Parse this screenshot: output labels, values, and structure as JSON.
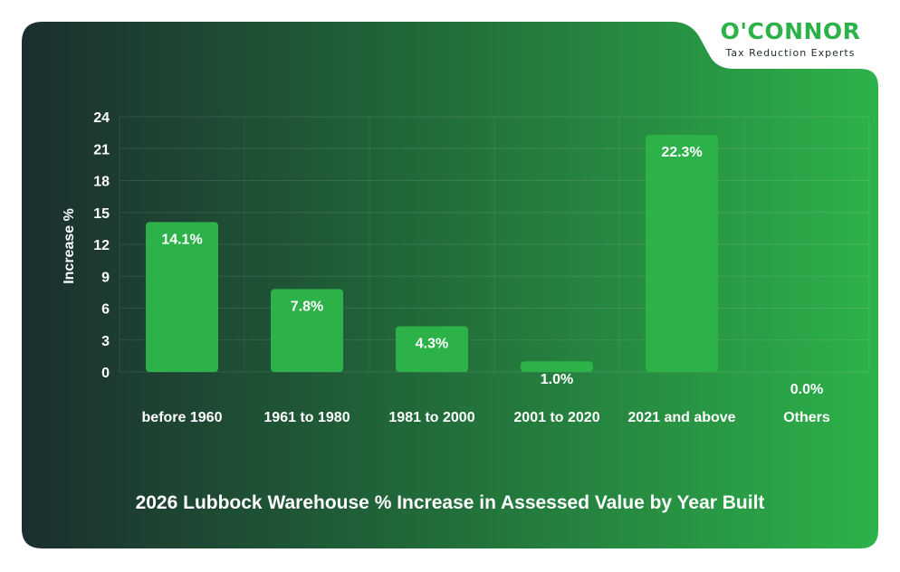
{
  "brand": {
    "name": "O'CONNOR",
    "tagline": "Tax Reduction Experts"
  },
  "colors": {
    "bar": "#2db24a",
    "background_dark": "#1c2e2f",
    "background_light": "#2db24a",
    "grid": "#ffffff",
    "text": "#ffffff"
  },
  "chart_data": {
    "type": "bar",
    "title": "2026 Lubbock Warehouse % Increase in Assessed Value by Year Built",
    "xlabel": "",
    "ylabel": "Increase %",
    "categories": [
      "before 1960",
      "1961 to 1980",
      "1981 to 2000",
      "2001 to 2020",
      "2021 and above",
      "Others"
    ],
    "values": [
      14.1,
      7.8,
      4.3,
      1.0,
      22.3,
      0.0
    ],
    "value_labels": [
      "14.1%",
      "7.8%",
      "4.3%",
      "1.0%",
      "22.3%",
      "0.0%"
    ],
    "ylim": [
      0,
      24
    ],
    "yticks": [
      0,
      3,
      6,
      9,
      12,
      15,
      18,
      21,
      24
    ],
    "grid": true,
    "legend": "none"
  }
}
